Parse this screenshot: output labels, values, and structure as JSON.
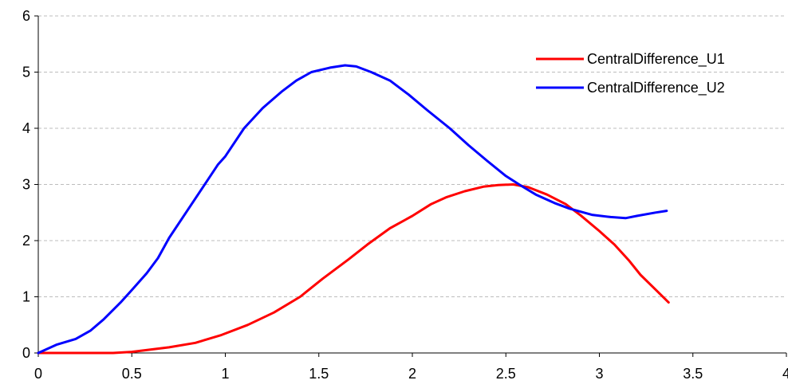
{
  "chart_data": {
    "type": "line",
    "title": "",
    "xlabel": "",
    "ylabel": "",
    "xlim": [
      0,
      4
    ],
    "ylim": [
      0,
      6
    ],
    "x_ticks": [
      "0",
      "0.5",
      "1",
      "1.5",
      "2",
      "2.5",
      "3",
      "3.5",
      "4"
    ],
    "y_ticks": [
      "0",
      "1",
      "2",
      "3",
      "4",
      "5",
      "6"
    ],
    "grid": "horizontal dashed",
    "legend_position": "top-right",
    "series": [
      {
        "name": "CentralDifference_U1",
        "color": "#ff0000",
        "points": [
          [
            0,
            0
          ],
          [
            0.2,
            0
          ],
          [
            0.4,
            0
          ],
          [
            0.5,
            0.02
          ],
          [
            0.6,
            0.06
          ],
          [
            0.7,
            0.1
          ],
          [
            0.84,
            0.18
          ],
          [
            0.98,
            0.32
          ],
          [
            1.12,
            0.5
          ],
          [
            1.26,
            0.72
          ],
          [
            1.4,
            1.0
          ],
          [
            1.52,
            1.32
          ],
          [
            1.66,
            1.67
          ],
          [
            1.76,
            1.93
          ],
          [
            1.88,
            2.22
          ],
          [
            2.0,
            2.44
          ],
          [
            2.1,
            2.65
          ],
          [
            2.18,
            2.77
          ],
          [
            2.28,
            2.88
          ],
          [
            2.38,
            2.96
          ],
          [
            2.46,
            2.99
          ],
          [
            2.54,
            3.0
          ],
          [
            2.62,
            2.95
          ],
          [
            2.72,
            2.82
          ],
          [
            2.82,
            2.65
          ],
          [
            2.9,
            2.45
          ],
          [
            3.0,
            2.17
          ],
          [
            3.08,
            1.93
          ],
          [
            3.16,
            1.64
          ],
          [
            3.22,
            1.39
          ],
          [
            3.3,
            1.13
          ],
          [
            3.37,
            0.9
          ]
        ]
      },
      {
        "name": "CentralDifference_U2",
        "color": "#0000ff",
        "points": [
          [
            0,
            0
          ],
          [
            0.1,
            0.15
          ],
          [
            0.2,
            0.25
          ],
          [
            0.28,
            0.4
          ],
          [
            0.35,
            0.6
          ],
          [
            0.44,
            0.9
          ],
          [
            0.5,
            1.12
          ],
          [
            0.58,
            1.42
          ],
          [
            0.64,
            1.69
          ],
          [
            0.7,
            2.05
          ],
          [
            0.8,
            2.55
          ],
          [
            0.96,
            3.35
          ],
          [
            1.0,
            3.5
          ],
          [
            1.1,
            4.0
          ],
          [
            1.2,
            4.36
          ],
          [
            1.3,
            4.65
          ],
          [
            1.38,
            4.85
          ],
          [
            1.46,
            5.0
          ],
          [
            1.56,
            5.08
          ],
          [
            1.64,
            5.12
          ],
          [
            1.7,
            5.1
          ],
          [
            1.78,
            5.0
          ],
          [
            1.88,
            4.85
          ],
          [
            1.98,
            4.6
          ],
          [
            2.08,
            4.32
          ],
          [
            2.2,
            4.0
          ],
          [
            2.3,
            3.7
          ],
          [
            2.4,
            3.42
          ],
          [
            2.5,
            3.15
          ],
          [
            2.58,
            2.98
          ],
          [
            2.66,
            2.82
          ],
          [
            2.76,
            2.67
          ],
          [
            2.84,
            2.57
          ],
          [
            2.96,
            2.46
          ],
          [
            3.06,
            2.42
          ],
          [
            3.14,
            2.4
          ],
          [
            3.2,
            2.44
          ],
          [
            3.3,
            2.5
          ],
          [
            3.36,
            2.53
          ]
        ]
      }
    ]
  }
}
